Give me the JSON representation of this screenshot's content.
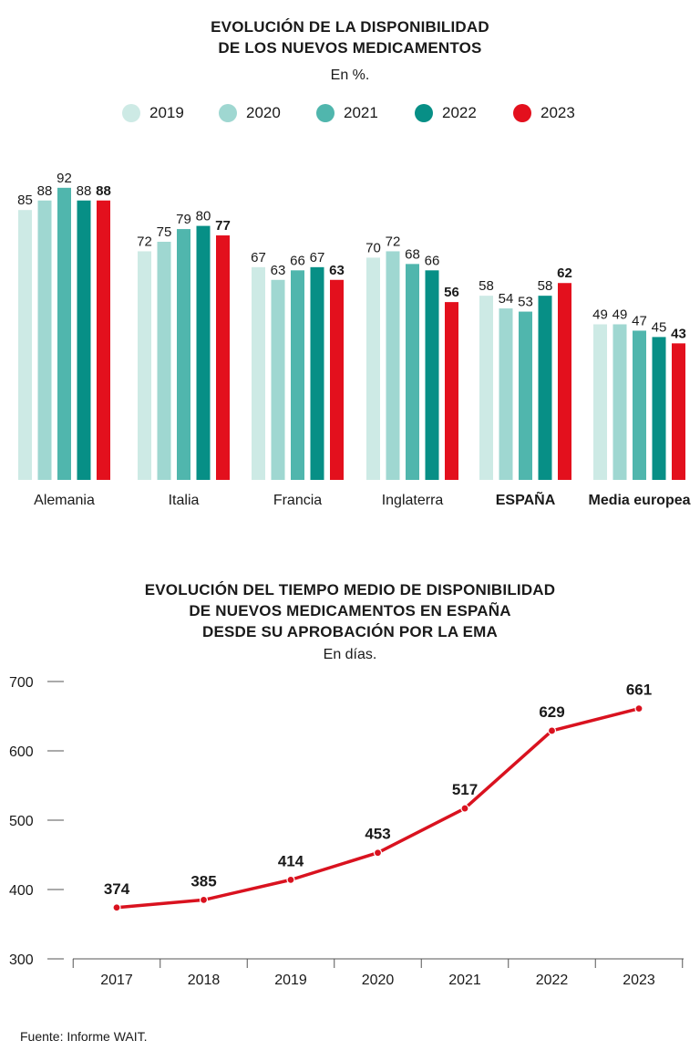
{
  "chart1": {
    "title_line1": "EVOLUCIÓN DE LA DISPONIBILIDAD",
    "title_line2": "DE LOS NUEVOS MEDICAMENTOS",
    "subtitle": "En %."
  },
  "chart2": {
    "title_line1": "EVOLUCIÓN DEL TIEMPO MEDIO DE DISPONIBILIDAD",
    "title_line2": "DE NUEVOS MEDICAMENTOS EN ESPAÑA",
    "title_line3": "DESDE SU APROBACIÓN POR LA EMA",
    "subtitle": "En días."
  },
  "footer": "Fuente: Informe WAIT.",
  "colors": {
    "s2019": "#cdeae5",
    "s2020": "#9fd7d1",
    "s2021": "#50b6ad",
    "s2022": "#078f86",
    "s2023": "#e3101d",
    "line": "#d9121f",
    "axis": "#555555"
  },
  "chart_data": [
    {
      "type": "bar",
      "title": "EVOLUCIÓN DE LA DISPONIBILIDAD DE LOS NUEVOS MEDICAMENTOS",
      "subtitle": "En %.",
      "categories": [
        "Alemania",
        "Italia",
        "Francia",
        "Inglaterra",
        "ESPAÑA",
        "Media europea"
      ],
      "bold_categories": [
        "ESPAÑA",
        "Media europea"
      ],
      "series": [
        {
          "name": "2019",
          "color": "#cdeae5",
          "values": [
            85,
            72,
            67,
            70,
            58,
            49
          ]
        },
        {
          "name": "2020",
          "color": "#9fd7d1",
          "values": [
            88,
            75,
            63,
            72,
            54,
            49
          ]
        },
        {
          "name": "2021",
          "color": "#50b6ad",
          "values": [
            92,
            79,
            66,
            68,
            53,
            47
          ]
        },
        {
          "name": "2022",
          "color": "#078f86",
          "values": [
            88,
            80,
            67,
            66,
            58,
            45
          ]
        },
        {
          "name": "2023",
          "color": "#e3101d",
          "values": [
            88,
            77,
            63,
            56,
            62,
            43
          ]
        }
      ],
      "legend": "top-center",
      "grid": false,
      "ylim": [
        0,
        100
      ]
    },
    {
      "type": "line",
      "title": "EVOLUCIÓN DEL TIEMPO MEDIO DE DISPONIBILIDAD DE NUEVOS MEDICAMENTOS EN ESPAÑA DESDE SU APROBACIÓN POR LA EMA",
      "subtitle": "En días.",
      "x": [
        "2017",
        "2018",
        "2019",
        "2020",
        "2021",
        "2022",
        "2023"
      ],
      "values": [
        374,
        385,
        414,
        453,
        517,
        629,
        661
      ],
      "yticks": [
        300,
        400,
        500,
        600,
        700
      ],
      "ylim": [
        300,
        700
      ],
      "grid": false,
      "color": "#d9121f"
    }
  ]
}
